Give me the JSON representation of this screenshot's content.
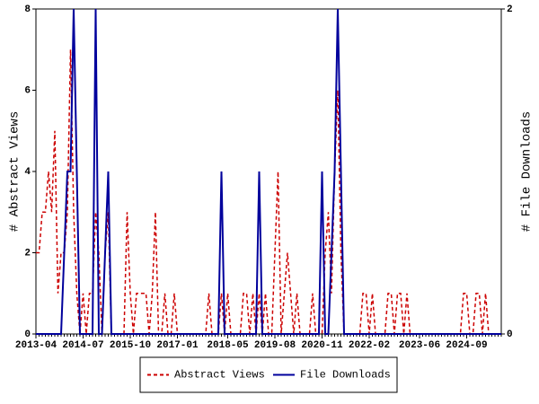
{
  "chart_data": {
    "type": "line",
    "categories": [
      "2013-04",
      null,
      null,
      null,
      null,
      null,
      null,
      null,
      null,
      null,
      null,
      null,
      null,
      null,
      null,
      "2014-07",
      null,
      null,
      null,
      null,
      null,
      null,
      null,
      null,
      null,
      null,
      null,
      null,
      null,
      null,
      "2015-10",
      null,
      null,
      null,
      null,
      null,
      null,
      null,
      null,
      null,
      null,
      null,
      null,
      null,
      null,
      "2017-01",
      null,
      null,
      null,
      null,
      null,
      null,
      null,
      null,
      null,
      null,
      null,
      null,
      null,
      null,
      null,
      "2018-05",
      null,
      null,
      null,
      null,
      null,
      null,
      null,
      null,
      null,
      null,
      null,
      null,
      null,
      null,
      "2019-08",
      null,
      null,
      null,
      null,
      null,
      null,
      null,
      null,
      null,
      null,
      null,
      null,
      null,
      null,
      "2020-11",
      null,
      null,
      null,
      null,
      null,
      null,
      null,
      null,
      null,
      null,
      null,
      null,
      null,
      null,
      "2022-02",
      null,
      null,
      null,
      null,
      null,
      null,
      null,
      null,
      null,
      null,
      null,
      null,
      null,
      null,
      null,
      "2023-06",
      null,
      null,
      null,
      null,
      null,
      null,
      null,
      null,
      null,
      null,
      null,
      null,
      null,
      null,
      "2024-09",
      null,
      null,
      null,
      null,
      null,
      null,
      null,
      null,
      null,
      null,
      null
    ],
    "series": [
      {
        "name": "Abstract Views",
        "color": "#cc0000",
        "dashed": true,
        "values": [
          2,
          2,
          3,
          3,
          4,
          3,
          5,
          1,
          2,
          2,
          3,
          7,
          3,
          1,
          0,
          1,
          0,
          1,
          1,
          3,
          2,
          0,
          2,
          3,
          0,
          0,
          0,
          0,
          0,
          3,
          1,
          0,
          1,
          1,
          1,
          1,
          0,
          1,
          3,
          0,
          0,
          1,
          0,
          0,
          1,
          0,
          0,
          0,
          0,
          0,
          0,
          0,
          0,
          0,
          0,
          1,
          0,
          0,
          0,
          1,
          0,
          1,
          0,
          0,
          0,
          0,
          1,
          1,
          0,
          1,
          0,
          1,
          0,
          1,
          0,
          0,
          2,
          4,
          0,
          1,
          2,
          1,
          0,
          1,
          0,
          0,
          0,
          0,
          1,
          0,
          0,
          0,
          2,
          3,
          1,
          4,
          6,
          2,
          0,
          0,
          0,
          0,
          0,
          0,
          1,
          1,
          0,
          1,
          0,
          0,
          0,
          0,
          1,
          1,
          0,
          1,
          1,
          0,
          1,
          0,
          0,
          0,
          0,
          0,
          0,
          0,
          0,
          0,
          0,
          0,
          0,
          0,
          0,
          0,
          0,
          0,
          1,
          1,
          0,
          0,
          1,
          1,
          0,
          1,
          0,
          0,
          0,
          0,
          0
        ]
      },
      {
        "name": "File Downloads",
        "color": "#00009c",
        "dashed": false,
        "axis": "y2",
        "values": [
          0,
          0,
          0,
          0,
          0,
          0,
          0,
          0,
          0,
          0.5,
          1,
          1,
          2,
          1,
          0,
          0,
          0,
          0,
          0,
          2,
          0,
          0,
          0.5,
          1,
          0,
          0,
          0,
          0,
          0,
          0,
          0,
          0,
          0,
          0,
          0,
          0,
          0,
          0,
          0,
          0,
          0,
          0,
          0,
          0,
          0,
          0,
          0,
          0,
          0,
          0,
          0,
          0,
          0,
          0,
          0,
          0,
          0,
          0,
          0,
          1,
          0,
          0,
          0,
          0,
          0,
          0,
          0,
          0,
          0,
          0,
          0,
          1,
          0,
          0,
          0,
          0,
          0,
          0,
          0,
          0,
          0,
          0,
          0,
          0,
          0,
          0,
          0,
          0,
          0,
          0,
          0,
          1,
          0,
          0,
          0.5,
          1,
          2,
          1,
          0,
          0,
          0,
          0,
          0,
          0,
          0,
          0,
          0,
          0,
          0,
          0,
          0,
          0,
          0,
          0,
          0,
          0,
          0,
          0,
          0,
          0,
          0,
          0,
          0,
          0,
          0,
          0,
          0,
          0,
          0,
          0,
          0,
          0,
          0,
          0,
          0,
          0,
          0,
          0,
          0,
          0,
          0,
          0,
          0,
          0,
          0,
          0,
          0,
          0,
          0
        ]
      }
    ],
    "ylabel": "# Abstract Views",
    "y2label": "# File Downloads",
    "ylim": [
      0,
      8
    ],
    "yticks": [
      0,
      2,
      4,
      6,
      8
    ],
    "y2lim": [
      0,
      2
    ],
    "y2ticks": [
      0,
      2
    ]
  }
}
